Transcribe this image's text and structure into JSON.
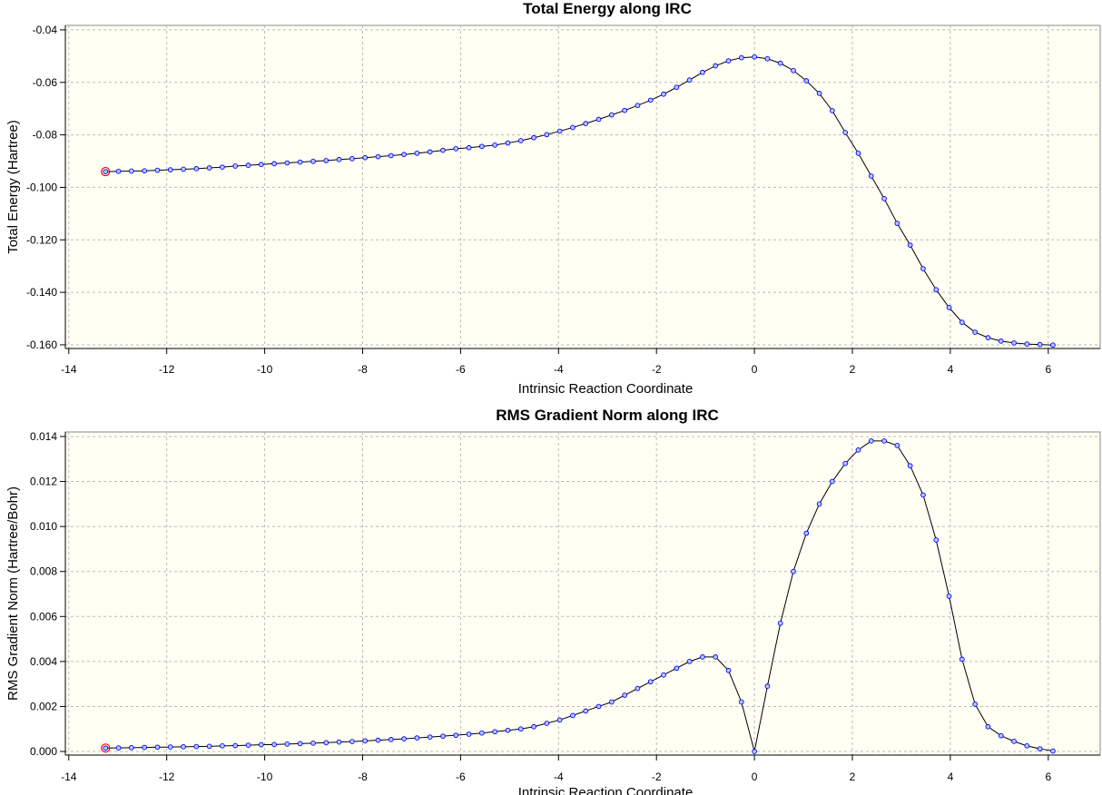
{
  "chart_data": [
    {
      "type": "line",
      "title": "Total Energy along IRC",
      "x_label": "Intrinsic Reaction Coordinate",
      "y_label": "Total Energy (Hartree)",
      "x": [
        -13.25,
        -12.985,
        -12.72,
        -12.455,
        -12.19,
        -11.925,
        -11.66,
        -11.395,
        -11.13,
        -10.865,
        -10.6,
        -10.335,
        -10.07,
        -9.805,
        -9.54,
        -9.275,
        -9.01,
        -8.745,
        -8.48,
        -8.215,
        -7.95,
        -7.685,
        -7.42,
        -7.155,
        -6.89,
        -6.625,
        -6.36,
        -6.095,
        -5.83,
        -5.565,
        -5.3,
        -5.035,
        -4.77,
        -4.505,
        -4.24,
        -3.975,
        -3.71,
        -3.445,
        -3.18,
        -2.915,
        -2.65,
        -2.385,
        -2.12,
        -1.855,
        -1.59,
        -1.325,
        -1.06,
        -0.795,
        -0.53,
        -0.265,
        0,
        0.265,
        0.53,
        0.795,
        1.06,
        1.325,
        1.59,
        1.855,
        2.12,
        2.385,
        2.65,
        2.915,
        3.18,
        3.445,
        3.71,
        3.975,
        4.24,
        4.505,
        4.77,
        5.035,
        5.3,
        5.565,
        5.83,
        6.095
      ],
      "values": [
        -0.094,
        -0.0939,
        -0.0938,
        -0.0937,
        -0.0935,
        -0.0933,
        -0.0931,
        -0.0929,
        -0.0926,
        -0.0923,
        -0.0919,
        -0.0916,
        -0.0913,
        -0.091,
        -0.0907,
        -0.0904,
        -0.0901,
        -0.0898,
        -0.0894,
        -0.0891,
        -0.0887,
        -0.0883,
        -0.0879,
        -0.0875,
        -0.087,
        -0.0865,
        -0.0859,
        -0.0853,
        -0.0849,
        -0.0844,
        -0.0839,
        -0.0831,
        -0.0822,
        -0.0811,
        -0.0799,
        -0.0786,
        -0.0772,
        -0.0757,
        -0.0741,
        -0.0724,
        -0.0707,
        -0.0688,
        -0.0668,
        -0.0645,
        -0.0619,
        -0.0591,
        -0.0562,
        -0.0537,
        -0.0518,
        -0.0506,
        -0.0503,
        -0.051,
        -0.0527,
        -0.0555,
        -0.0594,
        -0.0642,
        -0.0708,
        -0.0791,
        -0.087,
        -0.0957,
        -0.1043,
        -0.1137,
        -0.122,
        -0.131,
        -0.139,
        -0.1458,
        -0.1514,
        -0.1552,
        -0.1573,
        -0.1586,
        -0.1593,
        -0.1597,
        -0.1599,
        -0.1601
      ],
      "xlim": [
        -14.07,
        7.06
      ],
      "xticks": [
        -14,
        -12,
        -10,
        -8,
        -6,
        -4,
        -2,
        0,
        2,
        4,
        6
      ],
      "ylim": [
        -0.1614,
        -0.0383
      ],
      "yticks": [
        {
          "value": -0.16,
          "label": "-0.160"
        },
        {
          "value": -0.14,
          "label": "-0.140"
        },
        {
          "value": -0.12,
          "label": "-0.120"
        },
        {
          "value": -0.1,
          "label": "-0.100"
        },
        -0.08,
        -0.06,
        -0.04
      ],
      "grid": true,
      "line_color": "#000000",
      "marker_color": "#0000ff",
      "highlight_color": "#ff0000"
    },
    {
      "type": "line",
      "title": "RMS Gradient Norm along IRC",
      "x_label": "Intrinsic Reaction Coordinate",
      "y_label": "RMS Gradient Norm (Hartree/Bohr)",
      "x": [
        -13.25,
        -12.985,
        -12.72,
        -12.455,
        -12.19,
        -11.925,
        -11.66,
        -11.395,
        -11.13,
        -10.865,
        -10.6,
        -10.335,
        -10.07,
        -9.805,
        -9.54,
        -9.275,
        -9.01,
        -8.745,
        -8.48,
        -8.215,
        -7.95,
        -7.685,
        -7.42,
        -7.155,
        -6.89,
        -6.625,
        -6.36,
        -6.095,
        -5.83,
        -5.565,
        -5.3,
        -5.035,
        -4.77,
        -4.505,
        -4.24,
        -3.975,
        -3.71,
        -3.445,
        -3.18,
        -2.915,
        -2.65,
        -2.385,
        -2.12,
        -1.855,
        -1.59,
        -1.325,
        -1.06,
        -0.795,
        -0.53,
        -0.265,
        0,
        0.265,
        0.53,
        0.795,
        1.06,
        1.325,
        1.59,
        1.855,
        2.12,
        2.385,
        2.65,
        2.915,
        3.18,
        3.445,
        3.71,
        3.975,
        4.24,
        4.505,
        4.77,
        5.035,
        5.3,
        5.565,
        5.83,
        6.095
      ],
      "values": [
        0.00015,
        0.00016,
        0.00017,
        0.00018,
        0.00019,
        0.0002,
        0.00021,
        0.00022,
        0.00023,
        0.00025,
        0.00026,
        0.00028,
        0.0003,
        0.00031,
        0.00033,
        0.00035,
        0.00037,
        0.00039,
        0.00042,
        0.00044,
        0.00047,
        0.0005,
        0.00053,
        0.00056,
        0.0006,
        0.00064,
        0.00068,
        0.00072,
        0.00077,
        0.00082,
        0.00088,
        0.00094,
        0.001,
        0.0011,
        0.00125,
        0.0014,
        0.0016,
        0.0018,
        0.002,
        0.0022,
        0.0025,
        0.0028,
        0.0031,
        0.0034,
        0.0037,
        0.004,
        0.0042,
        0.0042,
        0.0036,
        0.0022,
        0,
        0.0029,
        0.0057,
        0.008,
        0.0097,
        0.011,
        0.012,
        0.0128,
        0.0134,
        0.0138,
        0.0138,
        0.0136,
        0.0127,
        0.0114,
        0.0094,
        0.0069,
        0.0041,
        0.0021,
        0.0011,
        0.0007,
        0.00045,
        0.00025,
        0.00012,
        2e-05
      ],
      "xlim": [
        -14.07,
        7.06
      ],
      "xticks": [
        -14,
        -12,
        -10,
        -8,
        -6,
        -4,
        -2,
        0,
        2,
        4,
        6
      ],
      "ylim": [
        -0.00016,
        0.0142
      ],
      "yticks": [
        {
          "value": 0,
          "label": "0.000"
        },
        0.002,
        0.004,
        0.006,
        0.008,
        {
          "value": 0.01,
          "label": "0.010"
        },
        0.012,
        0.014
      ],
      "grid": true,
      "line_color": "#000000",
      "marker_color": "#0000ff",
      "highlight_color": "#ff0000"
    }
  ]
}
